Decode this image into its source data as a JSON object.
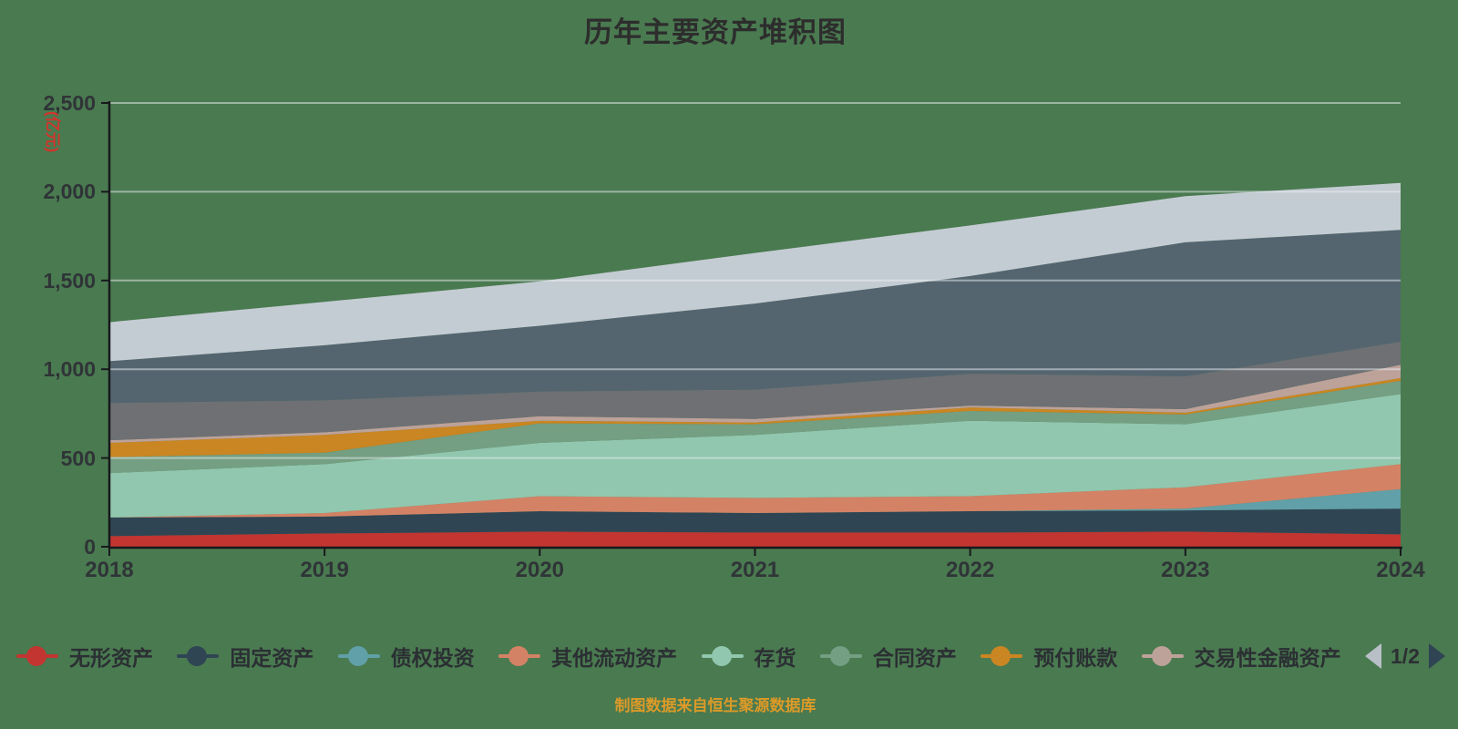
{
  "title": "历年主要资产堆积图",
  "y_axis_name": "(亿元)",
  "footer_note": "制图数据来自恒生聚源数据库",
  "colors": {
    "background": "#4a7a50",
    "axis_line": "#17191c",
    "tick_label": "#2f3437",
    "title_text": "#2d2d2d",
    "y_axis_name_text": "#d0342c",
    "gridline_overlay": "rgba(235,240,243,0.5)",
    "pager_prev_arrow": "#b9bfc6",
    "pager_next_arrow": "#2f4554",
    "footer_text": "#dc9a28"
  },
  "legend": {
    "pager": {
      "text": "1/2"
    }
  },
  "chart_data": {
    "type": "area",
    "stacked": true,
    "grid": true,
    "legend_position": "bottom",
    "x": [
      "2018",
      "2019",
      "2020",
      "2021",
      "2022",
      "2023",
      "2024"
    ],
    "ylim": [
      0,
      2500
    ],
    "ytick_interval": 500,
    "ytick_labels": [
      "0",
      "500",
      "1,000",
      "1,500",
      "2,000",
      "2,500"
    ],
    "series": [
      {
        "label": "无形资产",
        "color": "#c23531",
        "in_legend": true,
        "values": [
          60,
          75,
          85,
          80,
          80,
          85,
          70
        ]
      },
      {
        "label": "固定资产",
        "color": "#2f4554",
        "in_legend": true,
        "values": [
          105,
          95,
          115,
          110,
          120,
          120,
          145
        ]
      },
      {
        "label": "债权投资",
        "color": "#61a0a8",
        "in_legend": true,
        "values": [
          0,
          0,
          0,
          0,
          0,
          10,
          110
        ]
      },
      {
        "label": "其他流动资产",
        "color": "#d48265",
        "in_legend": true,
        "values": [
          0,
          20,
          85,
          85,
          85,
          120,
          140
        ]
      },
      {
        "label": "存货",
        "color": "#91c7ae",
        "in_legend": true,
        "values": [
          250,
          275,
          300,
          355,
          425,
          355,
          395
        ]
      },
      {
        "label": "合同资产",
        "color": "#749f83",
        "in_legend": true,
        "values": [
          90,
          65,
          110,
          60,
          55,
          55,
          75
        ]
      },
      {
        "label": "预付账款",
        "color": "#ca8622",
        "in_legend": true,
        "values": [
          80,
          100,
          15,
          10,
          20,
          10,
          15
        ]
      },
      {
        "label": "交易性金融资产",
        "color": "#bda29a",
        "in_legend": true,
        "values": [
          15,
          15,
          25,
          20,
          10,
          20,
          75
        ]
      },
      {
        "label": "",
        "color": "#6e7074",
        "in_legend": false,
        "values": [
          210,
          180,
          140,
          165,
          180,
          185,
          130
        ]
      },
      {
        "label": "",
        "color": "#546570",
        "in_legend": false,
        "values": [
          235,
          310,
          370,
          485,
          550,
          755,
          630
        ]
      },
      {
        "label": "",
        "color": "#c4ccd3",
        "in_legend": false,
        "values": [
          220,
          245,
          250,
          285,
          285,
          260,
          265
        ]
      }
    ]
  }
}
